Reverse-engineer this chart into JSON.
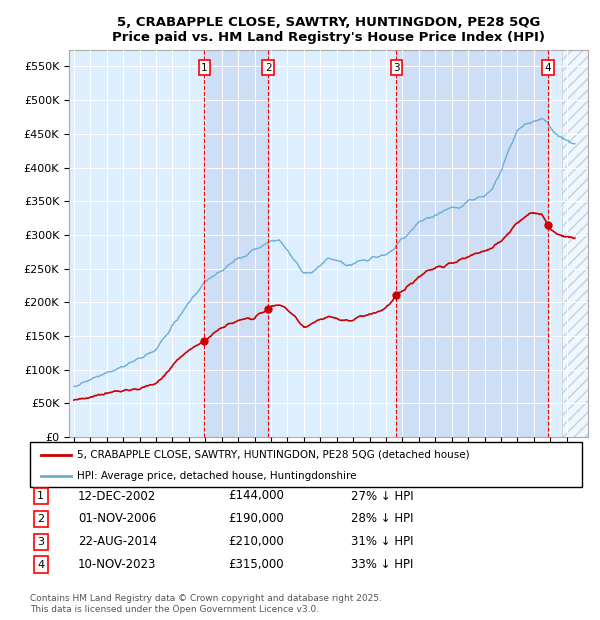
{
  "title_line1": "5, CRABAPPLE CLOSE, SAWTRY, HUNTINGDON, PE28 5QG",
  "title_line2": "Price paid vs. HM Land Registry's House Price Index (HPI)",
  "ylim": [
    0,
    575000
  ],
  "yticks": [
    0,
    50000,
    100000,
    150000,
    200000,
    250000,
    300000,
    350000,
    400000,
    450000,
    500000,
    550000
  ],
  "ytick_labels": [
    "£0",
    "£50K",
    "£100K",
    "£150K",
    "£200K",
    "£250K",
    "£300K",
    "£350K",
    "£400K",
    "£450K",
    "£500K",
    "£550K"
  ],
  "hpi_color": "#6baed6",
  "price_color": "#cc0000",
  "bg_color": "#ddeeff",
  "legend_label_price": "5, CRABAPPLE CLOSE, SAWTRY, HUNTINGDON, PE28 5QG (detached house)",
  "legend_label_hpi": "HPI: Average price, detached house, Huntingdonshire",
  "sale_markers": [
    {
      "label": "1",
      "date_x": 2002.95,
      "price": 144000,
      "date_str": "12-DEC-2002",
      "price_str": "£144,000",
      "pct_str": "27% ↓ HPI"
    },
    {
      "label": "2",
      "date_x": 2006.83,
      "price": 190000,
      "date_str": "01-NOV-2006",
      "price_str": "£190,000",
      "pct_str": "28% ↓ HPI"
    },
    {
      "label": "3",
      "date_x": 2014.64,
      "price": 210000,
      "date_str": "22-AUG-2014",
      "price_str": "£210,000",
      "pct_str": "31% ↓ HPI"
    },
    {
      "label": "4",
      "date_x": 2023.86,
      "price": 315000,
      "date_str": "10-NOV-2023",
      "price_str": "£315,000",
      "pct_str": "33% ↓ HPI"
    }
  ],
  "footer": "Contains HM Land Registry data © Crown copyright and database right 2025.\nThis data is licensed under the Open Government Licence v3.0.",
  "xlim_start": 1994.7,
  "xlim_end": 2026.3,
  "hatch_start": 2024.7,
  "hatch_end": 2026.3
}
